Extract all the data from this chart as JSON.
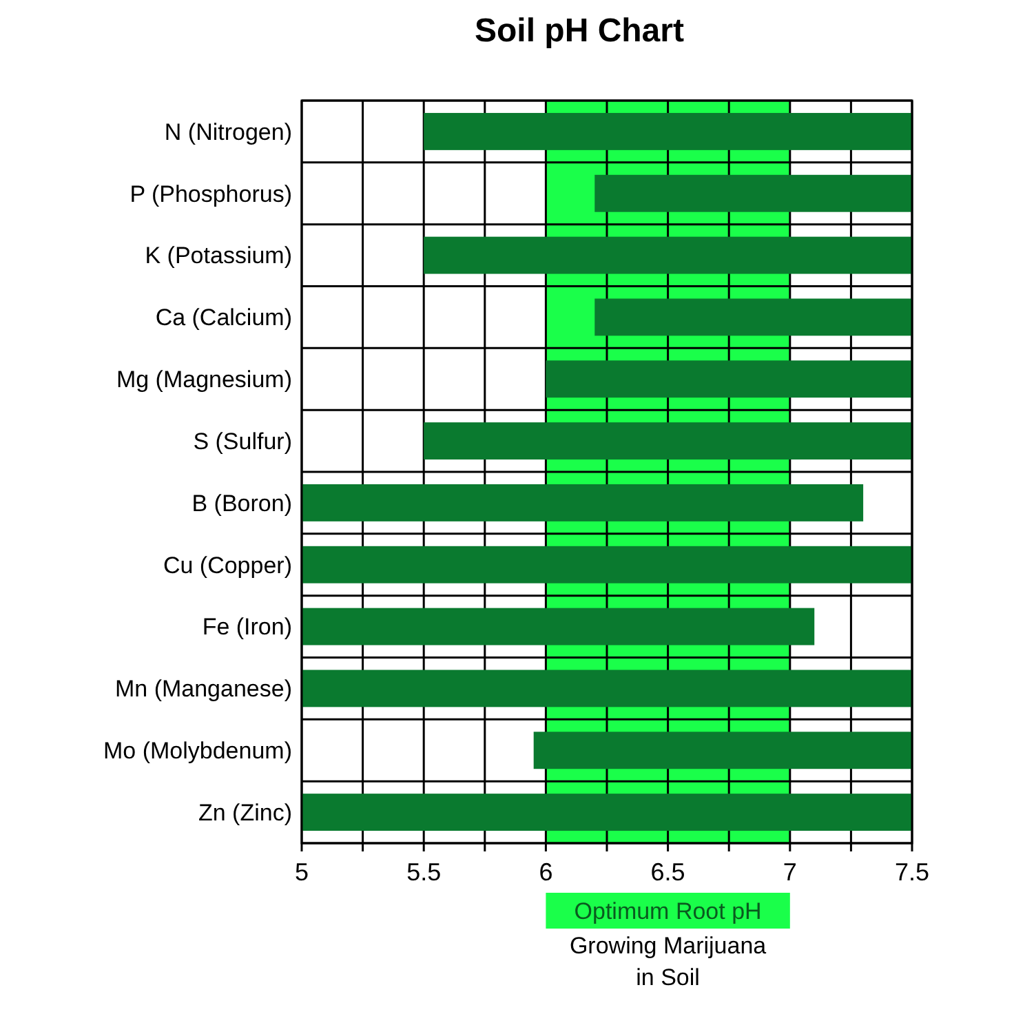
{
  "chart_data": {
    "type": "bar",
    "title": "Soil pH Chart",
    "orientation": "horizontal",
    "categories": [
      "N (Nitrogen)",
      "P (Phosphorus)",
      "K (Potassium)",
      "Ca (Calcium)",
      "Mg (Magnesium)",
      "S (Sulfur)",
      "B (Boron)",
      "Cu (Copper)",
      "Fe (Iron)",
      "Mn (Manganese)",
      "Mo (Molybdenum)",
      "Zn (Zinc)"
    ],
    "base": [
      5.5,
      6.2,
      5.5,
      6.2,
      6,
      5.5,
      5,
      5,
      5,
      5,
      5.95,
      5
    ],
    "values": [
      2,
      1.3,
      2,
      1.3,
      1.5,
      2,
      2.3,
      2.5,
      2.1,
      2.5,
      1.55,
      2.5
    ],
    "color": "#0a7a2f",
    "xlim": [
      5,
      7.5
    ],
    "xticks": [
      5,
      {
        "value": 5.25,
        "label": null
      },
      5.5,
      {
        "value": 5.75,
        "label": null
      },
      6,
      {
        "value": 6.25,
        "label": null
      },
      6.5,
      {
        "value": 6.75,
        "label": null
      },
      7,
      {
        "value": 7.25,
        "label": null
      },
      7.5
    ],
    "grid": true,
    "bands": [
      {
        "axis": "x",
        "from": 6,
        "to": 7,
        "label": "Optimum Root pH",
        "color": "#1aff4a"
      }
    ],
    "annotations": [
      "Growing Marijuana in Soil"
    ]
  }
}
